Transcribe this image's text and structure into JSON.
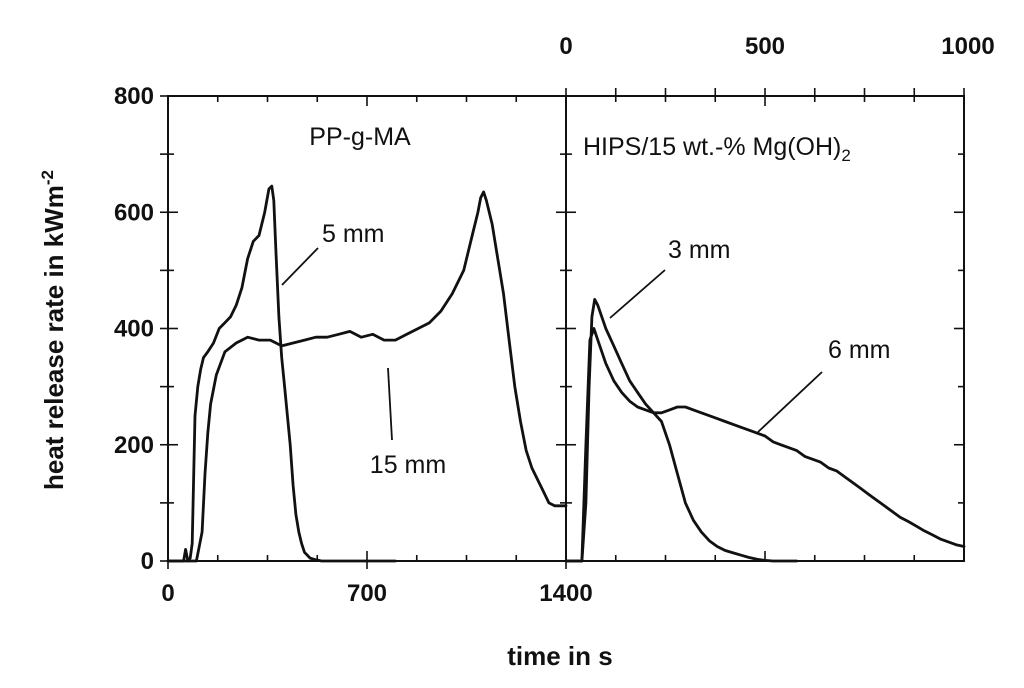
{
  "chart_data": [
    {
      "type": "line",
      "panel": "left",
      "title": "PP-g-MA",
      "xlabel": "time  in s",
      "ylabel": "heat release rate in kWm",
      "ylabel_superscript": "-2",
      "xlim": [
        0,
        1400
      ],
      "ylim": [
        0,
        800
      ],
      "x_ticks": [
        0,
        700,
        1400
      ],
      "y_ticks": [
        0,
        200,
        400,
        600,
        800
      ],
      "grid": false,
      "series": [
        {
          "name": "5 mm",
          "x": [
            0,
            55,
            62,
            70,
            78,
            85,
            95,
            105,
            115,
            125,
            140,
            160,
            180,
            200,
            220,
            240,
            260,
            280,
            300,
            320,
            340,
            355,
            365,
            372,
            380,
            390,
            400,
            410,
            420,
            430,
            440,
            450,
            460,
            470,
            480,
            500,
            520,
            540,
            560,
            600,
            700,
            800
          ],
          "y": [
            0,
            0,
            20,
            0,
            5,
            30,
            250,
            300,
            330,
            350,
            360,
            375,
            400,
            410,
            420,
            440,
            470,
            520,
            550,
            560,
            600,
            640,
            645,
            620,
            530,
            420,
            350,
            300,
            250,
            200,
            130,
            80,
            50,
            30,
            15,
            5,
            2,
            0,
            0,
            0,
            0,
            0
          ]
        },
        {
          "name": "15 mm",
          "x": [
            0,
            100,
            120,
            130,
            140,
            150,
            170,
            200,
            240,
            280,
            320,
            360,
            400,
            440,
            480,
            520,
            560,
            600,
            640,
            680,
            720,
            760,
            800,
            840,
            880,
            920,
            960,
            1000,
            1040,
            1070,
            1090,
            1100,
            1110,
            1120,
            1140,
            1160,
            1180,
            1200,
            1220,
            1240,
            1260,
            1280,
            1300,
            1320,
            1340,
            1360,
            1400
          ],
          "y": [
            0,
            0,
            50,
            150,
            220,
            270,
            320,
            360,
            375,
            385,
            380,
            380,
            370,
            375,
            380,
            385,
            385,
            390,
            395,
            385,
            390,
            380,
            380,
            390,
            400,
            410,
            430,
            460,
            500,
            560,
            600,
            625,
            635,
            620,
            580,
            520,
            460,
            380,
            300,
            240,
            190,
            160,
            140,
            120,
            100,
            95,
            95
          ]
        }
      ],
      "annotations": [
        {
          "text": "5 mm",
          "x": 395,
          "y": 400
        },
        {
          "text": "15 mm",
          "x": 780,
          "y": 380
        }
      ]
    },
    {
      "type": "line",
      "panel": "right",
      "title": "HIPS/15 wt.-% Mg(OH)",
      "title_subscript": "2",
      "xlim": [
        0,
        1000
      ],
      "ylim": [
        0,
        800
      ],
      "x_ticks_top": [
        0,
        500,
        1000
      ],
      "grid": false,
      "series": [
        {
          "name": "3 mm",
          "x": [
            0,
            40,
            50,
            58,
            65,
            72,
            80,
            100,
            120,
            140,
            160,
            180,
            200,
            220,
            240,
            260,
            280,
            300,
            320,
            340,
            360,
            380,
            400,
            420,
            440,
            460,
            480,
            500,
            520,
            540,
            560,
            580
          ],
          "y": [
            0,
            0,
            100,
            300,
            420,
            450,
            440,
            400,
            370,
            340,
            310,
            290,
            270,
            255,
            240,
            200,
            150,
            100,
            70,
            50,
            35,
            25,
            18,
            14,
            10,
            6,
            3,
            1,
            0,
            0,
            0,
            0
          ]
        },
        {
          "name": "6 mm",
          "x": [
            0,
            40,
            50,
            60,
            70,
            80,
            100,
            120,
            140,
            160,
            180,
            200,
            220,
            240,
            260,
            280,
            300,
            320,
            340,
            360,
            380,
            400,
            420,
            440,
            460,
            480,
            500,
            520,
            540,
            560,
            580,
            600,
            620,
            640,
            660,
            680,
            700,
            720,
            740,
            760,
            780,
            800,
            820,
            840,
            860,
            880,
            900,
            920,
            940,
            960,
            980,
            1000
          ],
          "y": [
            0,
            0,
            200,
            380,
            400,
            380,
            340,
            310,
            290,
            275,
            265,
            260,
            255,
            255,
            260,
            265,
            265,
            260,
            255,
            250,
            245,
            240,
            235,
            230,
            225,
            220,
            215,
            205,
            200,
            195,
            190,
            180,
            175,
            170,
            160,
            155,
            145,
            135,
            125,
            115,
            105,
            95,
            85,
            75,
            68,
            60,
            52,
            45,
            38,
            33,
            28,
            25
          ]
        }
      ],
      "annotations": [
        {
          "text": "3 mm",
          "x": 270,
          "y": 530
        },
        {
          "text": "6 mm",
          "x": 660,
          "y": 350
        }
      ]
    }
  ]
}
